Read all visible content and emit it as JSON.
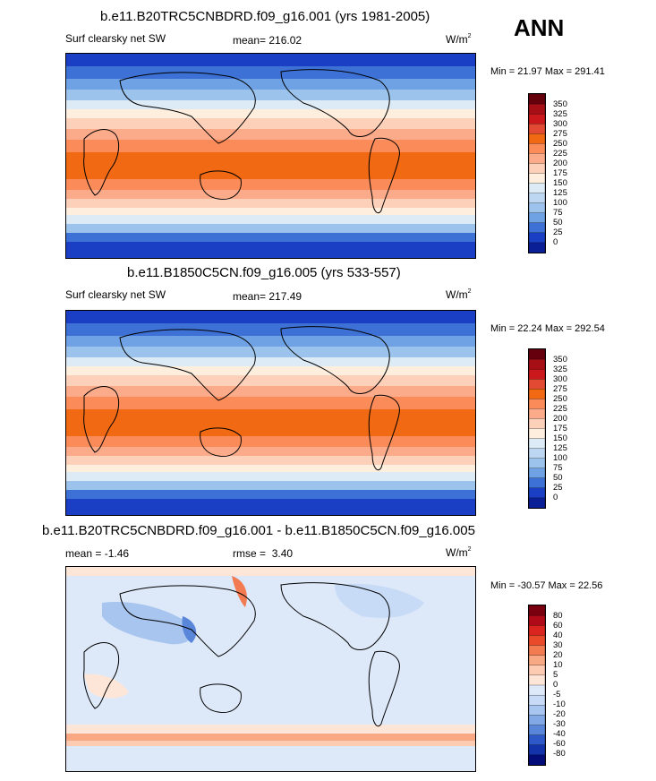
{
  "season": "ANN",
  "chart_data": [
    {
      "type": "heatmap",
      "title": "b.e11.B20TRC5CNBDRD.f09_g16.001 (yrs 1981-2005)",
      "variable": "Surf clearsky net SW",
      "stat_label": "mean=",
      "stat_value": "216.02",
      "units": "W/m",
      "units_exp": "2",
      "minmax": "Min =  21.97 Max = 291.41",
      "min": 21.97,
      "max": 291.41,
      "mean": 216.02,
      "colorbar": {
        "levels": [
          "350",
          "325",
          "300",
          "275",
          "250",
          "225",
          "200",
          "175",
          "150",
          "125",
          "100",
          "75",
          "50",
          "25",
          "0"
        ],
        "colors": [
          "#67000d",
          "#a50f15",
          "#cb181d",
          "#e34a33",
          "#f16913",
          "#fb8c5a",
          "#fcab8a",
          "#fdd0b9",
          "#fdeede",
          "#ddebf7",
          "#bdd7f2",
          "#9cc3ec",
          "#6fa2e4",
          "#3d71d6",
          "#1a3fc4",
          "#0a1f96"
        ]
      }
    },
    {
      "type": "heatmap",
      "title": "b.e11.B1850C5CN.f09_g16.005 (yrs 533-557)",
      "variable": "Surf clearsky net SW",
      "stat_label": "mean=",
      "stat_value": "217.49",
      "units": "W/m",
      "units_exp": "2",
      "minmax": "Min =  22.24 Max = 292.54",
      "min": 22.24,
      "max": 292.54,
      "mean": 217.49,
      "colorbar": {
        "levels": [
          "350",
          "325",
          "300",
          "275",
          "250",
          "225",
          "200",
          "175",
          "150",
          "125",
          "100",
          "75",
          "50",
          "25",
          "0"
        ],
        "colors": [
          "#67000d",
          "#a50f15",
          "#cb181d",
          "#e34a33",
          "#f16913",
          "#fb8c5a",
          "#fcab8a",
          "#fdd0b9",
          "#fdeede",
          "#ddebf7",
          "#bdd7f2",
          "#9cc3ec",
          "#6fa2e4",
          "#3d71d6",
          "#1a3fc4",
          "#0a1f96"
        ]
      }
    },
    {
      "type": "heatmap",
      "title": "b.e11.B20TRC5CNBDRD.f09_g16.001 - b.e11.B1850C5CN.f09_g16.005",
      "stat_label": "mean =",
      "stat_value": "-1.46",
      "rmse_label": "rmse =",
      "rmse_value": "3.40",
      "units": "W/m",
      "units_exp": "2",
      "minmax": "Min = -30.57 Max =  22.56",
      "min": -30.57,
      "max": 22.56,
      "mean": -1.46,
      "rmse": 3.4,
      "colorbar": {
        "levels": [
          "80",
          "60",
          "40",
          "30",
          "20",
          "10",
          "5",
          "0",
          "-5",
          "-10",
          "-20",
          "-30",
          "-40",
          "-60",
          "-80"
        ],
        "colors": [
          "#7a0010",
          "#b00a18",
          "#d9241f",
          "#ea4a2a",
          "#f27b52",
          "#f8a882",
          "#fccbb2",
          "#fde6d8",
          "#dde9f9",
          "#c7dbf6",
          "#a8c5ef",
          "#82a9e6",
          "#5a86da",
          "#2e58c8",
          "#1233aa",
          "#040c7a"
        ]
      }
    }
  ]
}
